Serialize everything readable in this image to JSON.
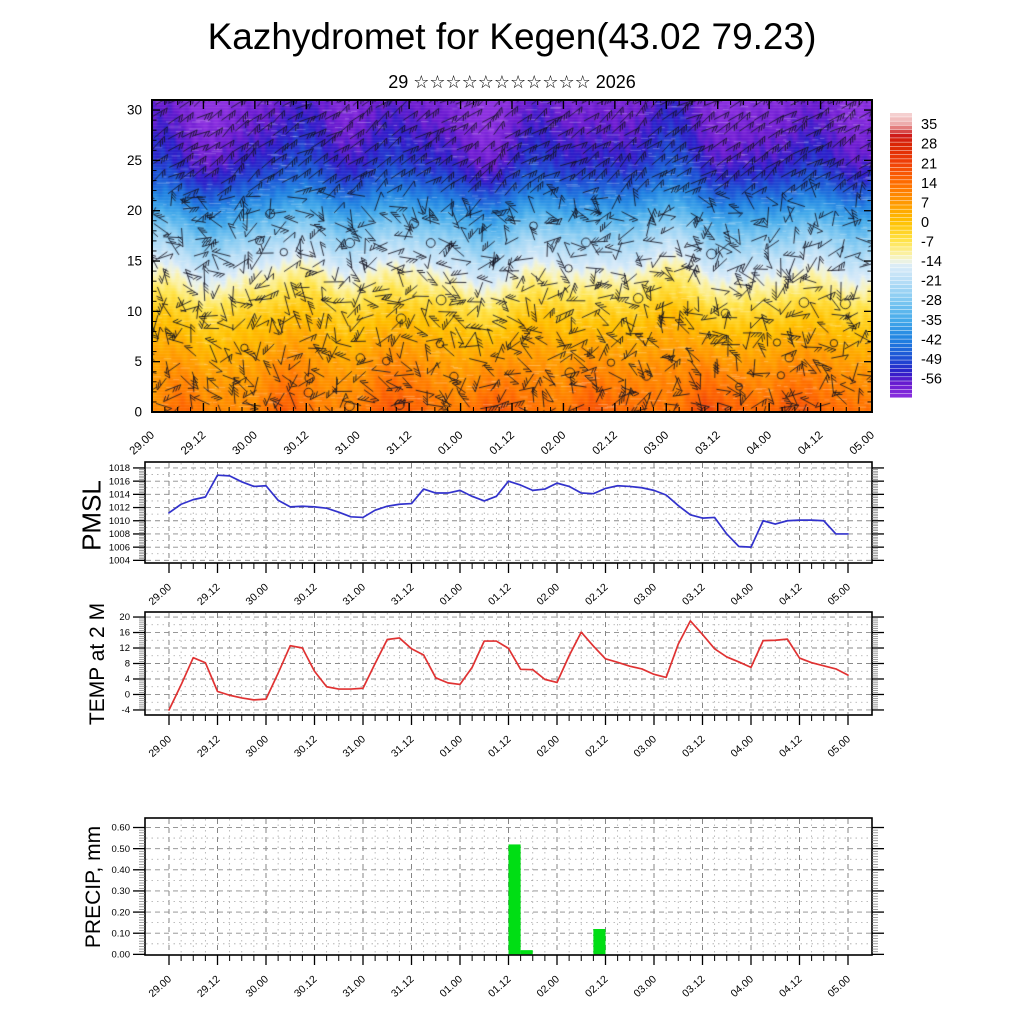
{
  "page": {
    "title": "Kazhydromet for Kegen(43.02 79.23)",
    "subtitle": "29 ☆☆☆☆☆☆☆☆☆☆☆ 2026",
    "background": "#ffffff"
  },
  "time_axis": {
    "labels": [
      "29.00",
      "29.12",
      "30.00",
      "30.12",
      "31.00",
      "31.12",
      "01.00",
      "01.12",
      "02.00",
      "02.12",
      "03.00",
      "03.12",
      "04.00",
      "04.12",
      "05.00"
    ],
    "label_step_hours": 12,
    "minor_step_hours": 3,
    "span_hours": 168
  },
  "chart_data": [
    {
      "type": "heatmap",
      "name": "time-height cross-section",
      "overlay": "wind-barbs",
      "ytick_labels": [
        "0",
        "5",
        "10",
        "15",
        "20",
        "25",
        "30"
      ],
      "yticks": [
        0,
        5,
        10,
        15,
        20,
        25,
        30
      ],
      "ylim": [
        0,
        31
      ],
      "colorbar": {
        "tick_labels": [
          "35",
          "28",
          "21",
          "14",
          "7",
          "0",
          "-7",
          "-14",
          "-21",
          "-28",
          "-35",
          "-42",
          "-49",
          "-56"
        ],
        "ticks": [
          35,
          28,
          21,
          14,
          7,
          0,
          -7,
          -14,
          -21,
          -28,
          -35,
          -42,
          -49,
          -56
        ],
        "range": [
          39,
          -63
        ],
        "stops": [
          [
            39,
            "#f7d9d9"
          ],
          [
            35,
            "#edaaaa"
          ],
          [
            31,
            "#ce1a1a"
          ],
          [
            28,
            "#da2405"
          ],
          [
            21,
            "#f14108"
          ],
          [
            14,
            "#ff6d00"
          ],
          [
            7,
            "#ff9800"
          ],
          [
            0,
            "#ffc100"
          ],
          [
            -7,
            "#ffe54d"
          ],
          [
            -12,
            "#fbf3ae"
          ],
          [
            -14,
            "#eef3e0"
          ],
          [
            -16,
            "#d9ebf9"
          ],
          [
            -21,
            "#b9dff7"
          ],
          [
            -28,
            "#83caf2"
          ],
          [
            -35,
            "#45abeb"
          ],
          [
            -42,
            "#2183e2"
          ],
          [
            -49,
            "#1d4fd4"
          ],
          [
            -54,
            "#2d1dc9"
          ],
          [
            -58,
            "#6a1bd0"
          ],
          [
            -63,
            "#8c30e0"
          ]
        ]
      },
      "temp_profile_anchors": [
        [
          0,
          0
        ],
        [
          2,
          -2.5
        ],
        [
          4,
          -5
        ],
        [
          6,
          -8.5
        ],
        [
          8,
          -12
        ],
        [
          10,
          -16
        ],
        [
          12,
          -22
        ],
        [
          14,
          -27.5
        ],
        [
          16,
          -34.5
        ],
        [
          18,
          -41.5
        ],
        [
          20,
          -50
        ],
        [
          21.5,
          -56.5
        ],
        [
          23,
          -62
        ],
        [
          25,
          -66.5
        ],
        [
          28,
          -70
        ],
        [
          31,
          -73
        ]
      ],
      "surface_temp_base": 10,
      "surface_temp_scale": 0.55
    },
    {
      "type": "line",
      "name": "PMSL",
      "color": "#3232cc",
      "ytick_labels": [
        "1004",
        "1006",
        "1008",
        "1010",
        "1012",
        "1014",
        "1016",
        "1018"
      ],
      "yticks": [
        1004,
        1006,
        1008,
        1010,
        1012,
        1014,
        1016,
        1018
      ],
      "ylim": [
        1003.6,
        1018.9
      ],
      "start_hour": 0,
      "step_hours": 3,
      "values": [
        1011.2,
        1012.5,
        1013.2,
        1013.6,
        1016.9,
        1016.8,
        1015.9,
        1015.2,
        1015.3,
        1013.1,
        1012.1,
        1012.2,
        1012.1,
        1011.9,
        1011.3,
        1010.6,
        1010.5,
        1011.6,
        1012.2,
        1012.5,
        1012.6,
        1014.8,
        1014.2,
        1014.2,
        1014.6,
        1013.7,
        1013.0,
        1013.7,
        1016.0,
        1015.4,
        1014.6,
        1014.8,
        1015.7,
        1015.2,
        1014.2,
        1014.1,
        1014.9,
        1015.3,
        1015.2,
        1015.0,
        1014.6,
        1013.9,
        1012.3,
        1010.9,
        1010.4,
        1010.5,
        1008.0,
        1006.1,
        1006.0,
        1010.0,
        1009.5,
        1010.0,
        1010.1,
        1010.1,
        1010.0,
        1008.0,
        1008.0
      ]
    },
    {
      "type": "line",
      "name": "TEMP at 2 M",
      "color": "#e03232",
      "ytick_labels": [
        "-4",
        "0",
        "4",
        "8",
        "12",
        "16",
        "20"
      ],
      "yticks": [
        -4,
        0,
        4,
        8,
        12,
        16,
        20
      ],
      "ylim": [
        -5.3,
        21.3
      ],
      "start_hour": 0,
      "step_hours": 3,
      "values": [
        -4.0,
        2.5,
        9.5,
        8.2,
        0.8,
        -0.2,
        -0.9,
        -1.4,
        -1.2,
        5.5,
        12.6,
        12.0,
        6.0,
        2.0,
        1.4,
        1.4,
        1.6,
        8.0,
        14.2,
        14.6,
        11.8,
        10.2,
        4.3,
        3.0,
        2.6,
        7.0,
        13.8,
        13.8,
        11.9,
        6.5,
        6.4,
        3.9,
        3.1,
        10.0,
        16.1,
        12.5,
        9.2,
        8.3,
        7.3,
        6.6,
        5.2,
        4.4,
        13.0,
        19.0,
        15.5,
        11.8,
        9.7,
        8.4,
        7.0,
        13.9,
        14.0,
        14.3,
        9.4,
        8.2,
        7.4,
        6.6,
        5.0
      ]
    },
    {
      "type": "bar",
      "name": "PRECIP, mm",
      "color": "#00de14",
      "ytick_labels": [
        "0.00",
        "0.10",
        "0.20",
        "0.30",
        "0.40",
        "0.50",
        "0.60"
      ],
      "yticks": [
        0,
        0.1,
        0.2,
        0.3,
        0.4,
        0.5,
        0.6
      ],
      "ylim": [
        -0.003,
        0.645
      ],
      "start_hour": 0,
      "step_hours": 3,
      "values": [
        0,
        0,
        0,
        0,
        0,
        0,
        0,
        0,
        0,
        0,
        0,
        0,
        0,
        0,
        0,
        0,
        0,
        0,
        0,
        0,
        0,
        0,
        0,
        0,
        0,
        0,
        0,
        0,
        0.52,
        0.02,
        0,
        0,
        0,
        0,
        0,
        0.12,
        0,
        0,
        0,
        0,
        0,
        0,
        0,
        0,
        0,
        0,
        0,
        0,
        0,
        0,
        0,
        0,
        0,
        0,
        0,
        0,
        0
      ]
    }
  ]
}
